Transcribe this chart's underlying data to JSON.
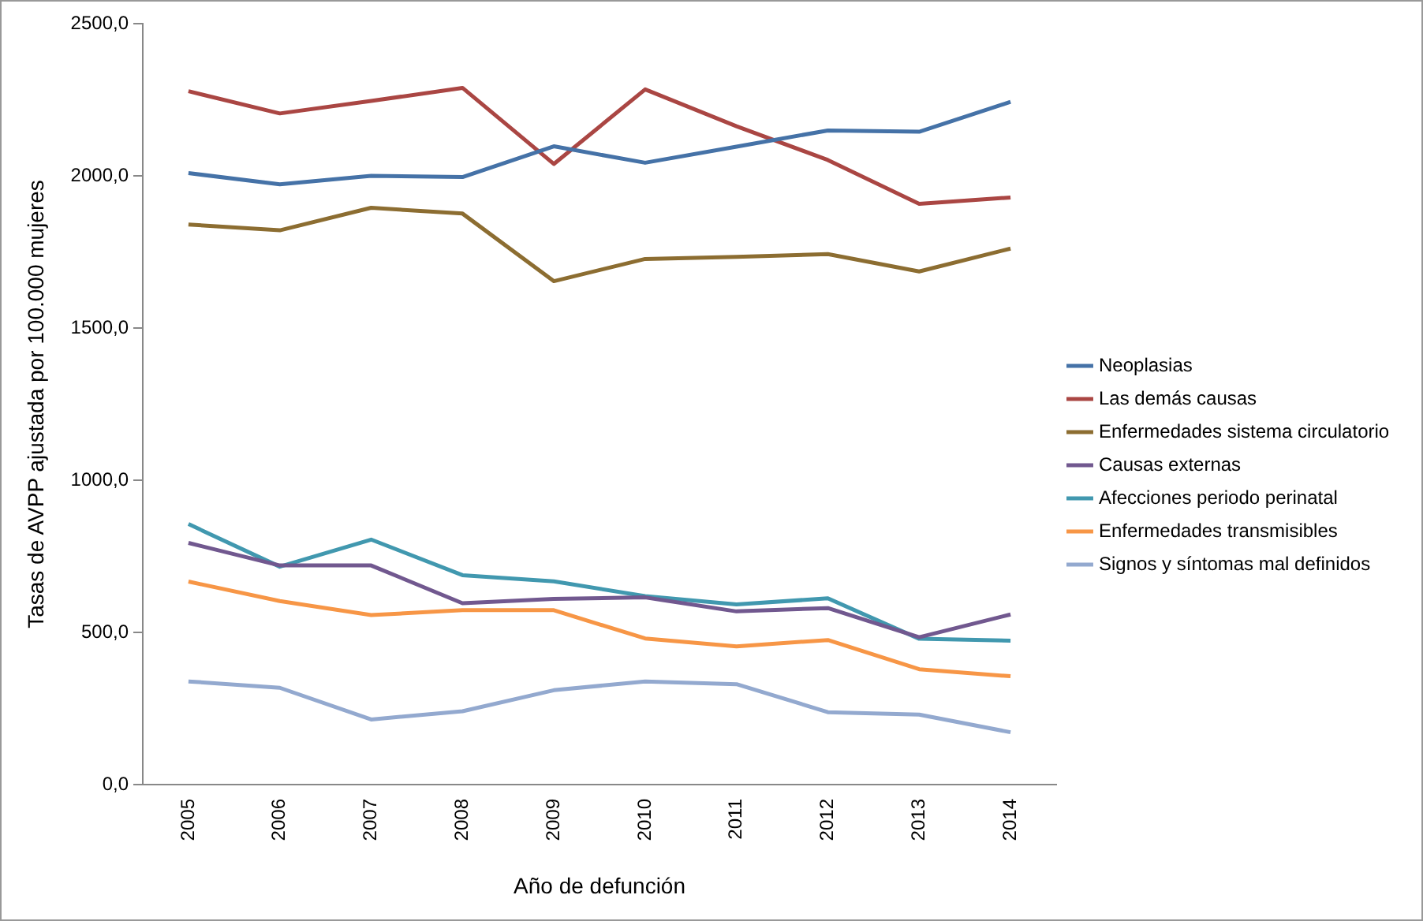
{
  "chart_data": {
    "type": "line",
    "xlabel": "Año de defunción",
    "ylabel": "Tasas de AVPP ajustada por 100.000 mujeres",
    "categories": [
      "2005",
      "2006",
      "2007",
      "2008",
      "2009",
      "2010",
      "2011",
      "2012",
      "2013",
      "2014"
    ],
    "series": [
      {
        "name": "Neoplasias",
        "color": "#4572a7",
        "values": [
          2009,
          1972,
          2000,
          1996,
          2097,
          2043,
          2096,
          2149,
          2145,
          2243
        ]
      },
      {
        "name": "Las demás causas",
        "color": "#aa4643",
        "values": [
          2278,
          2205,
          2246,
          2289,
          2039,
          2284,
          2163,
          2052,
          1908,
          1929
        ]
      },
      {
        "name": "Enfermedades sistema circulatorio",
        "color": "#8c6d31",
        "values": [
          1840,
          1821,
          1895,
          1876,
          1654,
          1727,
          1734,
          1743,
          1686,
          1761
        ]
      },
      {
        "name": "Causas externas",
        "color": "#71588f",
        "values": [
          794,
          720,
          720,
          596,
          610,
          615,
          569,
          580,
          484,
          559
        ]
      },
      {
        "name": "Afecciones periodo perinatal",
        "color": "#4198af",
        "values": [
          856,
          716,
          805,
          688,
          668,
          619,
          592,
          612,
          479,
          473
        ]
      },
      {
        "name": "Enfermedades transmisibles",
        "color": "#f79646",
        "values": [
          667,
          603,
          557,
          573,
          573,
          480,
          454,
          475,
          379,
          356
        ]
      },
      {
        "name": "Signos y síntomas mal definidos",
        "color": "#93a9cf",
        "values": [
          339,
          318,
          214,
          241,
          310,
          339,
          330,
          238,
          230,
          172
        ]
      }
    ],
    "ylim": [
      0,
      2500
    ],
    "yticks": [
      {
        "value": 0,
        "label": "0,0"
      },
      {
        "value": 500,
        "label": "500,0"
      },
      {
        "value": 1000,
        "label": "1000,0"
      },
      {
        "value": 1500,
        "label": "1500,0"
      },
      {
        "value": 2000,
        "label": "2000,0"
      },
      {
        "value": 2500,
        "label": "2500,0"
      }
    ],
    "grid": false,
    "legend": "right",
    "marker": "none",
    "line_style": "solid"
  }
}
